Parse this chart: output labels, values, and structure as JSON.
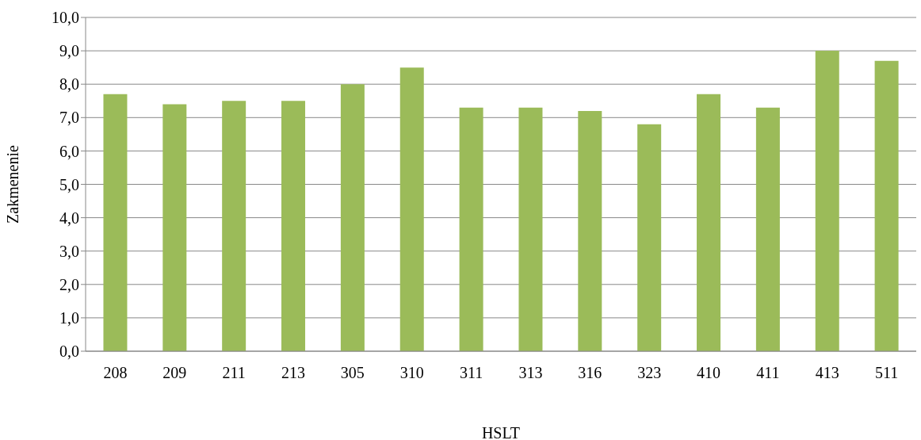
{
  "chart_data": {
    "type": "bar",
    "xlabel": "HSLT",
    "ylabel": "Zakmenenie",
    "categories": [
      "208",
      "209",
      "211",
      "213",
      "305",
      "310",
      "311",
      "313",
      "316",
      "323",
      "410",
      "411",
      "413",
      "511"
    ],
    "values": [
      7.7,
      7.4,
      7.5,
      7.5,
      8.0,
      8.5,
      7.3,
      7.3,
      7.2,
      6.8,
      7.7,
      7.3,
      9.0,
      8.7
    ],
    "color": "#9bbb59",
    "ylim": [
      0,
      10
    ],
    "yticks": [
      {
        "value": 0,
        "label": "0,0"
      },
      {
        "value": 1,
        "label": "1,0"
      },
      {
        "value": 2,
        "label": "2,0"
      },
      {
        "value": 3,
        "label": "3,0"
      },
      {
        "value": 4,
        "label": "4,0"
      },
      {
        "value": 5,
        "label": "5,0"
      },
      {
        "value": 6,
        "label": "6,0"
      },
      {
        "value": 7,
        "label": "7,0"
      },
      {
        "value": 8,
        "label": "8,0"
      },
      {
        "value": 9,
        "label": "9,0"
      },
      {
        "value": 10,
        "label": "10,0"
      }
    ],
    "grid": "y"
  }
}
